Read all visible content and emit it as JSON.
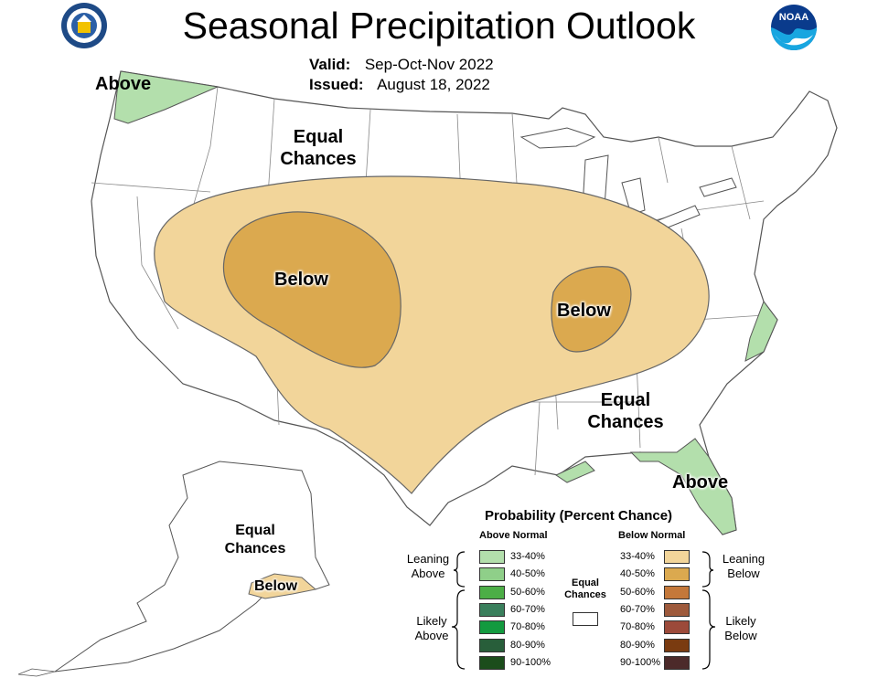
{
  "header": {
    "title": "Seasonal Precipitation Outlook",
    "valid_label": "Valid:",
    "valid_value": "Sep-Oct-Nov 2022",
    "issued_label": "Issued:",
    "issued_value": "August 18, 2022"
  },
  "map_labels": {
    "pnw_above": "Above",
    "north_equal": [
      "Equal",
      "Chances"
    ],
    "west_below": "Below",
    "east_below": "Below",
    "south_equal": [
      "Equal",
      "Chances"
    ],
    "florida_above": "Above",
    "alaska_equal": [
      "Equal",
      "Chances"
    ],
    "alaska_below": "Below"
  },
  "legend": {
    "title": "Probability (Percent Chance)",
    "above_header": "Above Normal",
    "below_header": "Below Normal",
    "equal_label": [
      "Equal",
      "Chances"
    ],
    "leaning_above": [
      "Leaning",
      "Above"
    ],
    "likely_above": [
      "Likely",
      "Above"
    ],
    "leaning_below": [
      "Leaning",
      "Below"
    ],
    "likely_below": [
      "Likely",
      "Below"
    ],
    "above_bins": [
      {
        "label": "33-40%",
        "color": "#b3dfac"
      },
      {
        "label": "40-50%",
        "color": "#8fcf89"
      },
      {
        "label": "50-60%",
        "color": "#4cae46"
      },
      {
        "label": "60-70%",
        "color": "#3a7f5c"
      },
      {
        "label": "70-80%",
        "color": "#139a3f"
      },
      {
        "label": "80-90%",
        "color": "#285e3a"
      },
      {
        "label": "90-100%",
        "color": "#1b4d1b"
      }
    ],
    "below_bins": [
      {
        "label": "33-40%",
        "color": "#f2d59a"
      },
      {
        "label": "40-50%",
        "color": "#dba94f"
      },
      {
        "label": "50-60%",
        "color": "#c4783a"
      },
      {
        "label": "60-70%",
        "color": "#9e5a3c"
      },
      {
        "label": "70-80%",
        "color": "#9c4a3a"
      },
      {
        "label": "80-90%",
        "color": "#7a3b10"
      },
      {
        "label": "90-100%",
        "color": "#4c2a2a"
      }
    ],
    "equal_color": "#ffffff"
  },
  "logos": {
    "left": "dept-of-commerce-seal",
    "right": "noaa-logo",
    "right_text": "NOAA"
  }
}
